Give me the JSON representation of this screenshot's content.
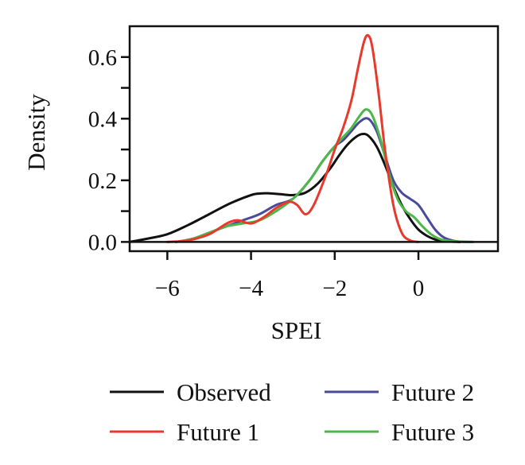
{
  "chart_data": {
    "type": "line",
    "title": "",
    "xlabel": "SPEI",
    "ylabel": "Density",
    "xlim": [
      -6.9,
      1.9
    ],
    "ylim": [
      -0.03,
      0.7
    ],
    "xticks": [
      -6,
      -4,
      -2,
      0
    ],
    "xtick_labels": [
      "−6",
      "−4",
      "−2",
      "0"
    ],
    "yticks": [
      0.0,
      0.2,
      0.4,
      0.6
    ],
    "ytick_labels": [
      "0.0",
      "0.2",
      "0.4",
      "0.6"
    ],
    "y_minor_ticks": [
      0.1,
      0.3,
      0.5
    ],
    "grid": false,
    "legend_position": "bottom",
    "series": [
      {
        "name": "Observed",
        "color": "#111111",
        "x": [
          -6.9,
          -6.5,
          -6.0,
          -5.5,
          -5.0,
          -4.5,
          -4.0,
          -3.8,
          -3.6,
          -3.3,
          -3.0,
          -2.7,
          -2.4,
          -2.1,
          -1.9,
          -1.7,
          -1.5,
          -1.35,
          -1.2,
          -1.0,
          -0.8,
          -0.6,
          -0.4,
          -0.2,
          0.0,
          0.2,
          0.4,
          0.6,
          0.8,
          1.0
        ],
        "y": [
          0.0,
          0.01,
          0.025,
          0.055,
          0.09,
          0.125,
          0.152,
          0.157,
          0.158,
          0.155,
          0.152,
          0.16,
          0.19,
          0.24,
          0.28,
          0.315,
          0.34,
          0.35,
          0.345,
          0.31,
          0.25,
          0.18,
          0.12,
          0.075,
          0.04,
          0.02,
          0.008,
          0.003,
          0.001,
          0.0
        ]
      },
      {
        "name": "Future 1",
        "color": "#e8392b",
        "x": [
          -6.0,
          -5.5,
          -5.0,
          -4.7,
          -4.5,
          -4.3,
          -4.0,
          -3.7,
          -3.4,
          -3.1,
          -2.9,
          -2.7,
          -2.5,
          -2.2,
          -2.0,
          -1.8,
          -1.6,
          -1.45,
          -1.3,
          -1.2,
          -1.1,
          -0.95,
          -0.8,
          -0.6,
          -0.4,
          -0.2,
          0.0
        ],
        "y": [
          0.0,
          0.005,
          0.025,
          0.05,
          0.065,
          0.07,
          0.06,
          0.08,
          0.11,
          0.13,
          0.12,
          0.09,
          0.12,
          0.22,
          0.3,
          0.37,
          0.46,
          0.56,
          0.65,
          0.67,
          0.63,
          0.48,
          0.3,
          0.12,
          0.03,
          0.005,
          0.0
        ]
      },
      {
        "name": "Future 2",
        "color": "#4a4a9c",
        "x": [
          -5.8,
          -5.4,
          -5.0,
          -4.6,
          -4.2,
          -3.8,
          -3.4,
          -3.0,
          -2.6,
          -2.3,
          -2.0,
          -1.8,
          -1.6,
          -1.4,
          -1.2,
          -1.0,
          -0.8,
          -0.6,
          -0.4,
          -0.2,
          0.0,
          0.2,
          0.4,
          0.6,
          0.8,
          1.0,
          1.3
        ],
        "y": [
          0.0,
          0.01,
          0.03,
          0.05,
          0.07,
          0.09,
          0.12,
          0.14,
          0.2,
          0.26,
          0.31,
          0.33,
          0.36,
          0.39,
          0.4,
          0.36,
          0.28,
          0.2,
          0.16,
          0.14,
          0.12,
          0.08,
          0.04,
          0.015,
          0.005,
          0.001,
          0.0
        ]
      },
      {
        "name": "Future 3",
        "color": "#4cb848",
        "x": [
          -5.8,
          -5.4,
          -5.0,
          -4.6,
          -4.2,
          -3.8,
          -3.4,
          -3.0,
          -2.6,
          -2.3,
          -2.0,
          -1.8,
          -1.6,
          -1.4,
          -1.25,
          -1.1,
          -0.9,
          -0.7,
          -0.5,
          -0.3,
          -0.1,
          0.1,
          0.3,
          0.5,
          0.7,
          1.0,
          1.3
        ],
        "y": [
          0.0,
          0.01,
          0.03,
          0.05,
          0.06,
          0.07,
          0.1,
          0.14,
          0.2,
          0.26,
          0.31,
          0.34,
          0.37,
          0.41,
          0.43,
          0.41,
          0.33,
          0.22,
          0.14,
          0.1,
          0.08,
          0.05,
          0.025,
          0.01,
          0.004,
          0.001,
          0.0
        ]
      }
    ]
  }
}
